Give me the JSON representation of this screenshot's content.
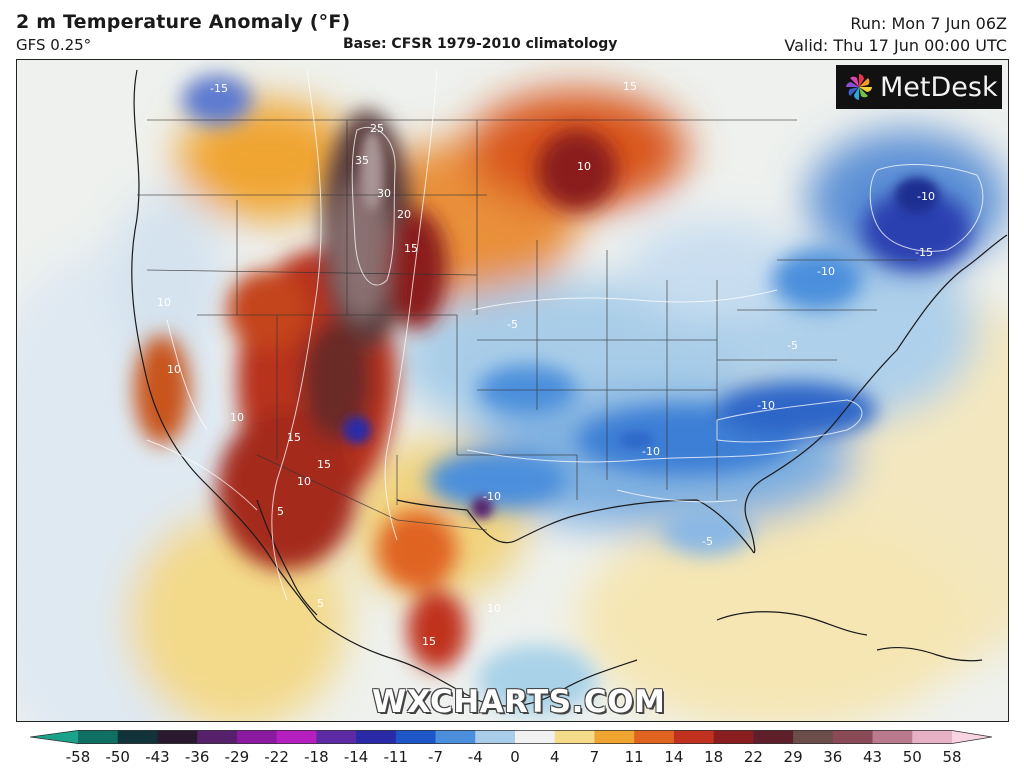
{
  "header": {
    "title": "2 m Temperature Anomaly (°F)",
    "model": "GFS 0.25°",
    "base": "Base: CFSR 1979-2010 climatology",
    "run": "Run: Mon 7 Jun 06Z",
    "valid": "Valid: Thu 17 Jun 00:00 UTC"
  },
  "logo": {
    "text": "MetDesk",
    "icon": "pinwheel-icon"
  },
  "watermark": "WXCHARTS.COM",
  "legend": {
    "ticks": [
      "-58",
      "-50",
      "-43",
      "-36",
      "-29",
      "-22",
      "-18",
      "-14",
      "-11",
      "-7",
      "-4",
      "0",
      "4",
      "7",
      "11",
      "14",
      "18",
      "22",
      "29",
      "36",
      "43",
      "50",
      "58"
    ],
    "colors": [
      "#1aa38a",
      "#0e6f62",
      "#12333a",
      "#2b1a2f",
      "#56206a",
      "#8b1aa0",
      "#b51fc0",
      "#5d2aa6",
      "#2a2aa8",
      "#1d56c8",
      "#4b8fdc",
      "#a9cde8",
      "#f1f1f1",
      "#f5dc8a",
      "#f0a531",
      "#e06420",
      "#c0321f",
      "#8a1d1f",
      "#5e1f2a",
      "#6b4d4a",
      "#8b4a57",
      "#b97a8e",
      "#e6b0c5",
      "#f7d4e2"
    ]
  },
  "map_labels": [
    "-10",
    "-15",
    "-10",
    "-10",
    "-10",
    "-5",
    "-5",
    "-5",
    "-15",
    "-10",
    "35",
    "30",
    "25",
    "20",
    "15",
    "10",
    "10",
    "10",
    "15",
    "15",
    "10",
    "15",
    "5",
    "5",
    "15",
    "10",
    "10"
  ]
}
